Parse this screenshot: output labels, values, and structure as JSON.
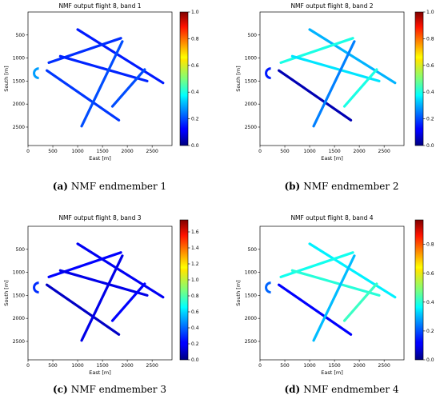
{
  "chart_data": [
    {
      "type": "heatmap",
      "title": "NMF output flight 8, band 1",
      "xlabel": "East [m]",
      "ylabel": "South [m]",
      "xlim": [
        0,
        2900
      ],
      "ylim": [
        2900,
        0
      ],
      "xticks": [
        "0",
        "500",
        "1000",
        "1500",
        "2000",
        "2500"
      ],
      "yticks": [
        "500",
        "1000",
        "1500",
        "2000",
        "2500"
      ],
      "colorbar": {
        "min": 0.0,
        "max": 1.0,
        "ticks": [
          "0.0",
          "0.2",
          "0.4",
          "0.6",
          "0.8",
          "1.0"
        ]
      },
      "caption": {
        "letter": "(a)",
        "text": "NMF endmember 1"
      },
      "flight_lines": [
        {
          "x1": 1000,
          "y1": 380,
          "x2": 2720,
          "y2": 1540,
          "value": 0.15
        },
        {
          "x1": 380,
          "y1": 1270,
          "x2": 1830,
          "y2": 2350,
          "value": 0.18
        },
        {
          "x1": 420,
          "y1": 1100,
          "x2": 1870,
          "y2": 570,
          "value": 0.17
        },
        {
          "x1": 650,
          "y1": 960,
          "x2": 2400,
          "y2": 1500,
          "value": 0.16
        },
        {
          "x1": 1080,
          "y1": 2480,
          "x2": 1900,
          "y2": 640,
          "value": 0.2
        },
        {
          "x1": 1700,
          "y1": 2050,
          "x2": 2350,
          "y2": 1250,
          "value": 0.2
        }
      ]
    },
    {
      "type": "heatmap",
      "title": "NMF output flight 8, band 2",
      "xlabel": "East [m]",
      "ylabel": "South [m]",
      "xlim": [
        0,
        2900
      ],
      "ylim": [
        2900,
        0
      ],
      "xticks": [
        "0",
        "500",
        "1000",
        "1500",
        "2000",
        "2500"
      ],
      "yticks": [
        "500",
        "1000",
        "1500",
        "2000",
        "2500"
      ],
      "colorbar": {
        "min": 0.0,
        "max": 1.0,
        "ticks": [
          "0.0",
          "0.2",
          "0.4",
          "0.6",
          "0.8",
          "1.0"
        ]
      },
      "caption": {
        "letter": "(b)",
        "text": "NMF endmember 2"
      },
      "flight_lines": [
        {
          "x1": 1000,
          "y1": 380,
          "x2": 2720,
          "y2": 1540,
          "value": 0.3
        },
        {
          "x1": 380,
          "y1": 1270,
          "x2": 1830,
          "y2": 2350,
          "value": 0.05
        },
        {
          "x1": 420,
          "y1": 1100,
          "x2": 1870,
          "y2": 570,
          "value": 0.4
        },
        {
          "x1": 650,
          "y1": 960,
          "x2": 2400,
          "y2": 1500,
          "value": 0.35
        },
        {
          "x1": 1080,
          "y1": 2480,
          "x2": 1900,
          "y2": 640,
          "value": 0.25
        },
        {
          "x1": 1700,
          "y1": 2050,
          "x2": 2350,
          "y2": 1250,
          "value": 0.4
        }
      ]
    },
    {
      "type": "heatmap",
      "title": "NMF output flight 8, band 3",
      "xlabel": "East [m]",
      "ylabel": "South [m]",
      "xlim": [
        0,
        2900
      ],
      "ylim": [
        2900,
        0
      ],
      "xticks": [
        "0",
        "500",
        "1000",
        "1500",
        "2000",
        "2500"
      ],
      "yticks": [
        "500",
        "1000",
        "1500",
        "2000",
        "2500"
      ],
      "colorbar": {
        "min": 0.0,
        "max": 1.75,
        "ticks": [
          "0.0",
          "0.2",
          "0.4",
          "0.6",
          "0.8",
          "1.0",
          "1.2",
          "1.4",
          "1.6"
        ]
      },
      "caption": {
        "letter": "(c)",
        "text": "NMF endmember 3"
      },
      "flight_lines": [
        {
          "x1": 1000,
          "y1": 380,
          "x2": 2720,
          "y2": 1540,
          "value": 0.2
        },
        {
          "x1": 380,
          "y1": 1270,
          "x2": 1830,
          "y2": 2350,
          "value": 0.12
        },
        {
          "x1": 420,
          "y1": 1100,
          "x2": 1870,
          "y2": 570,
          "value": 0.22
        },
        {
          "x1": 650,
          "y1": 960,
          "x2": 2400,
          "y2": 1500,
          "value": 0.18
        },
        {
          "x1": 1080,
          "y1": 2480,
          "x2": 1900,
          "y2": 640,
          "value": 0.18
        },
        {
          "x1": 1700,
          "y1": 2050,
          "x2": 2350,
          "y2": 1250,
          "value": 0.22
        }
      ]
    },
    {
      "type": "heatmap",
      "title": "NMF output flight 8, band 4",
      "xlabel": "East [m]",
      "ylabel": "South [m]",
      "xlim": [
        0,
        2900
      ],
      "ylim": [
        2900,
        0
      ],
      "xticks": [
        "0",
        "500",
        "1000",
        "1500",
        "2000",
        "2500"
      ],
      "yticks": [
        "500",
        "1000",
        "1500",
        "2000",
        "2500"
      ],
      "colorbar": {
        "min": 0.0,
        "max": 0.97,
        "ticks": [
          "0.0",
          "0.2",
          "0.4",
          "0.6",
          "0.8"
        ]
      },
      "caption": {
        "letter": "(d)",
        "text": "NMF endmember 4"
      },
      "flight_lines": [
        {
          "x1": 1000,
          "y1": 380,
          "x2": 2720,
          "y2": 1540,
          "value": 0.35
        },
        {
          "x1": 380,
          "y1": 1270,
          "x2": 1830,
          "y2": 2350,
          "value": 0.12
        },
        {
          "x1": 420,
          "y1": 1100,
          "x2": 1870,
          "y2": 570,
          "value": 0.38
        },
        {
          "x1": 650,
          "y1": 960,
          "x2": 2400,
          "y2": 1500,
          "value": 0.4
        },
        {
          "x1": 1080,
          "y1": 2480,
          "x2": 1900,
          "y2": 640,
          "value": 0.3
        },
        {
          "x1": 1700,
          "y1": 2050,
          "x2": 2350,
          "y2": 1250,
          "value": 0.42
        }
      ]
    }
  ]
}
